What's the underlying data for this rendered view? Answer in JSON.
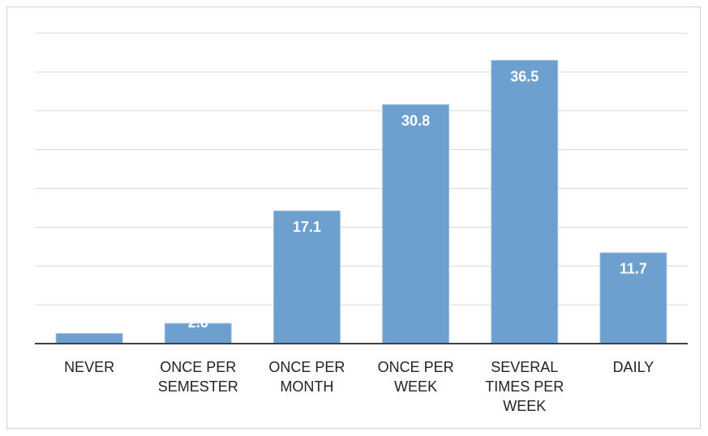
{
  "chart_data": {
    "type": "bar",
    "categories": [
      "NEVER",
      "ONCE PER SEMESTER",
      "ONCE PER MONTH",
      "ONCE PER WEEK",
      "SEVERAL TIMES PER WEEK",
      "DAILY"
    ],
    "values": [
      1.3,
      2.6,
      17.1,
      30.8,
      36.5,
      11.7
    ],
    "color": "#6d9fcf",
    "ylim": [
      0,
      40
    ],
    "yticks": [
      0,
      5,
      10,
      15,
      20,
      25,
      30,
      35,
      40
    ],
    "grid": true
  }
}
